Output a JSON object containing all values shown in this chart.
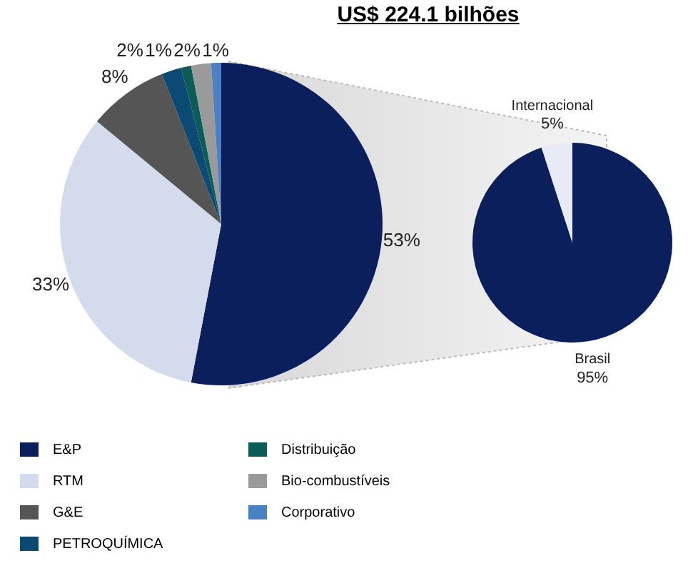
{
  "chart_data": [
    {
      "type": "pie",
      "title": "US$ 224.1 bilhões",
      "categories": [
        "E&P",
        "RTM",
        "G&E",
        "PETROQUÍMICA",
        "Distribuição",
        "Bio-combustíveis",
        "Corporativo"
      ],
      "values": [
        53,
        33,
        8,
        2,
        1,
        2,
        1
      ],
      "colors": [
        "#0a1f5c",
        "#d3dbec",
        "#555555",
        "#0b4a72",
        "#0b5c56",
        "#9a9a9a",
        "#4a80c4"
      ],
      "value_labels": [
        "53%",
        "33%",
        "8%",
        "2%",
        "1%",
        "2%",
        "1%"
      ],
      "legend": "bottom"
    },
    {
      "type": "pie",
      "categories": [
        "Brasil",
        "Internacional"
      ],
      "values": [
        95,
        5
      ],
      "colors": [
        "#0a1f5c",
        "#e6ebf5"
      ],
      "value_labels": [
        "95%",
        "5%"
      ],
      "legend": false
    }
  ]
}
